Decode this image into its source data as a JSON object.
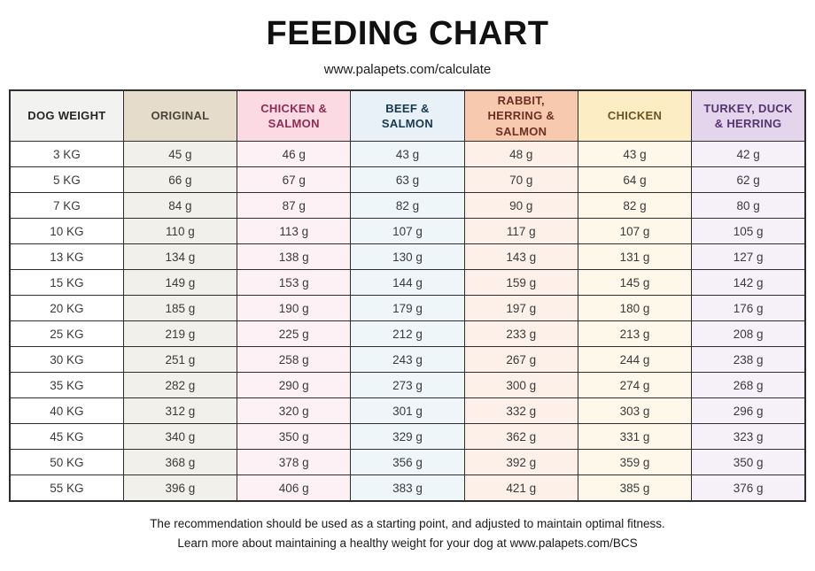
{
  "page": {
    "title": "FEEDING CHART",
    "subtitle": "www.palapets.com/calculate",
    "footer_line1": "The recommendation should be used as a starting point, and adjusted to maintain optimal fitness.",
    "footer_line2": "Learn more about maintaining a healthy weight for your dog at www.palapets.com/BCS"
  },
  "chart_data": {
    "type": "table",
    "title": "FEEDING CHART",
    "unit": "g",
    "columns": [
      {
        "id": "dog-weight",
        "label": "DOG WEIGHT",
        "header_bg": "#f2f2f0",
        "header_text": "#262626",
        "cell_bg": "#ffffff"
      },
      {
        "id": "original",
        "label": "ORIGINAL",
        "header_bg": "#e6dccc",
        "header_text": "#4a443a",
        "cell_bg": "#f2f0ea"
      },
      {
        "id": "chicken-salmon",
        "label": "CHICKEN & SALMON",
        "header_bg": "#fbdae4",
        "header_text": "#8e2d52",
        "cell_bg": "#fdf1f5"
      },
      {
        "id": "beef-salmon",
        "label": "BEEF & SALMON",
        "header_bg": "#e9f1f8",
        "header_text": "#17384e",
        "cell_bg": "#eff6fa"
      },
      {
        "id": "rabbit-herring-salmon",
        "label": "RABBIT, HERRING & SALMON",
        "header_bg": "#f7c9ae",
        "header_text": "#6e2f22",
        "cell_bg": "#fdf0e9"
      },
      {
        "id": "chicken",
        "label": "CHICKEN",
        "header_bg": "#fdedc4",
        "header_text": "#6d5222",
        "cell_bg": "#fdf8ea"
      },
      {
        "id": "turkey-duck-herring",
        "label": "TURKEY, DUCK & HERRING",
        "header_bg": "#e4d4ec",
        "header_text": "#553570",
        "cell_bg": "#f6f1f8"
      }
    ],
    "rows": [
      {
        "weight": "3 KG",
        "values": [
          45,
          46,
          43,
          48,
          43,
          42
        ]
      },
      {
        "weight": "5 KG",
        "values": [
          66,
          67,
          63,
          70,
          64,
          62
        ]
      },
      {
        "weight": "7 KG",
        "values": [
          84,
          87,
          82,
          90,
          82,
          80
        ]
      },
      {
        "weight": "10 KG",
        "values": [
          110,
          113,
          107,
          117,
          107,
          105
        ]
      },
      {
        "weight": "13 KG",
        "values": [
          134,
          138,
          130,
          143,
          131,
          127
        ]
      },
      {
        "weight": "15 KG",
        "values": [
          149,
          153,
          144,
          159,
          145,
          142
        ]
      },
      {
        "weight": "20 KG",
        "values": [
          185,
          190,
          179,
          197,
          180,
          176
        ]
      },
      {
        "weight": "25 KG",
        "values": [
          219,
          225,
          212,
          233,
          213,
          208
        ]
      },
      {
        "weight": "30 KG",
        "values": [
          251,
          258,
          243,
          267,
          244,
          238
        ]
      },
      {
        "weight": "35 KG",
        "values": [
          282,
          290,
          273,
          300,
          274,
          268
        ]
      },
      {
        "weight": "40 KG",
        "values": [
          312,
          320,
          301,
          332,
          303,
          296
        ]
      },
      {
        "weight": "45 KG",
        "values": [
          340,
          350,
          329,
          362,
          331,
          323
        ]
      },
      {
        "weight": "50 KG",
        "values": [
          368,
          378,
          356,
          392,
          359,
          350
        ]
      },
      {
        "weight": "55 KG",
        "values": [
          396,
          406,
          383,
          421,
          385,
          376
        ]
      }
    ]
  }
}
